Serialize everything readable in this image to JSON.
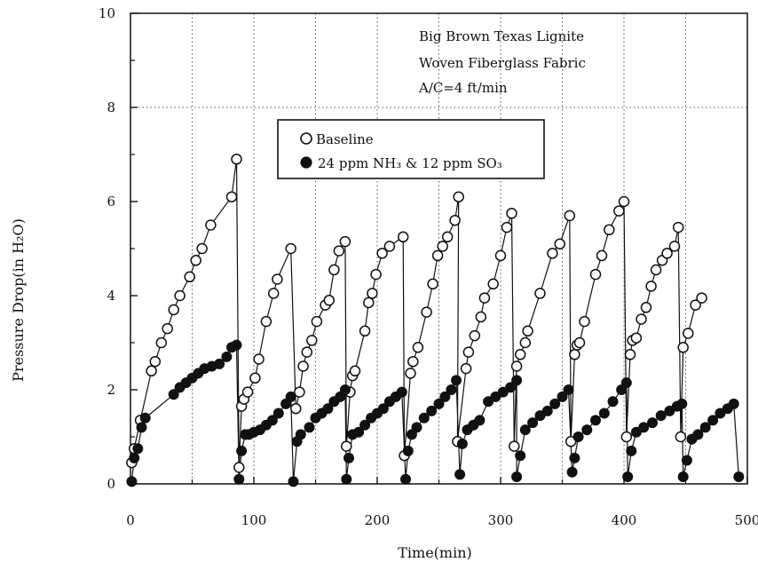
{
  "chart_data": {
    "type": "scatter",
    "xlabel": "Time(min)",
    "ylabel": "Pressure Drop(in H₂O)",
    "xlim": [
      0,
      500
    ],
    "ylim": [
      0,
      10
    ],
    "x_ticks": [
      "0",
      "100",
      "200",
      "300",
      "400",
      "500"
    ],
    "y_ticks": [
      "0",
      "2",
      "4",
      "6",
      "8",
      "10"
    ],
    "grid": "dotted vertical at every 50 min; dotted horizontal at 8",
    "annotations": [
      "Big Brown Texas Lignite",
      "Woven Fiberglass Fabric",
      "A/C=4 ft/min"
    ],
    "legend_position": "upper-left inside plot",
    "series": [
      {
        "name": "Baseline",
        "marker": "open-circle",
        "points": [
          [
            1,
            0.45
          ],
          [
            3,
            0.75
          ],
          [
            8,
            1.35
          ],
          [
            17,
            2.4
          ],
          [
            20,
            2.6
          ],
          [
            25,
            3.0
          ],
          [
            30,
            3.3
          ],
          [
            35,
            3.7
          ],
          [
            40,
            4.0
          ],
          [
            48,
            4.4
          ],
          [
            53,
            4.75
          ],
          [
            58,
            5.0
          ],
          [
            65,
            5.5
          ],
          [
            82,
            6.1
          ],
          [
            86,
            6.9
          ],
          [
            88,
            0.35
          ],
          [
            90,
            1.65
          ],
          [
            92,
            1.8
          ],
          [
            95,
            1.95
          ],
          [
            101,
            2.25
          ],
          [
            104,
            2.65
          ],
          [
            110,
            3.45
          ],
          [
            116,
            4.05
          ],
          [
            119,
            4.35
          ],
          [
            130,
            5.0
          ],
          [
            134,
            1.6
          ],
          [
            137,
            1.95
          ],
          [
            140,
            2.5
          ],
          [
            143,
            2.8
          ],
          [
            147,
            3.05
          ],
          [
            151,
            3.45
          ],
          [
            158,
            3.8
          ],
          [
            161,
            3.9
          ],
          [
            165,
            4.55
          ],
          [
            169,
            4.95
          ],
          [
            174,
            5.15
          ],
          [
            175,
            0.8
          ],
          [
            178,
            1.95
          ],
          [
            180,
            2.3
          ],
          [
            182,
            2.4
          ],
          [
            190,
            3.25
          ],
          [
            193,
            3.85
          ],
          [
            196,
            4.05
          ],
          [
            199,
            4.45
          ],
          [
            204,
            4.9
          ],
          [
            210,
            5.05
          ],
          [
            221,
            5.25
          ],
          [
            222,
            0.6
          ],
          [
            227,
            2.35
          ],
          [
            229,
            2.6
          ],
          [
            233,
            2.9
          ],
          [
            240,
            3.65
          ],
          [
            245,
            4.25
          ],
          [
            249,
            4.85
          ],
          [
            253,
            5.05
          ],
          [
            257,
            5.25
          ],
          [
            263,
            5.6
          ],
          [
            266,
            6.1
          ],
          [
            265,
            0.9
          ],
          [
            272,
            2.45
          ],
          [
            274,
            2.8
          ],
          [
            279,
            3.15
          ],
          [
            284,
            3.55
          ],
          [
            287,
            3.95
          ],
          [
            294,
            4.25
          ],
          [
            300,
            4.85
          ],
          [
            305,
            5.45
          ],
          [
            309,
            5.75
          ],
          [
            311,
            0.8
          ],
          [
            313,
            2.5
          ],
          [
            316,
            2.75
          ],
          [
            320,
            3.0
          ],
          [
            322,
            3.25
          ],
          [
            332,
            4.05
          ],
          [
            342,
            4.9
          ],
          [
            348,
            5.1
          ],
          [
            356,
            5.7
          ],
          [
            357,
            0.9
          ],
          [
            360,
            2.75
          ],
          [
            362,
            2.95
          ],
          [
            364,
            3.0
          ],
          [
            368,
            3.45
          ],
          [
            377,
            4.45
          ],
          [
            382,
            4.85
          ],
          [
            388,
            5.4
          ],
          [
            396,
            5.8
          ],
          [
            400,
            6.0
          ],
          [
            402,
            1.0
          ],
          [
            405,
            2.75
          ],
          [
            407,
            3.05
          ],
          [
            410,
            3.1
          ],
          [
            414,
            3.5
          ],
          [
            418,
            3.75
          ],
          [
            422,
            4.2
          ],
          [
            426,
            4.55
          ],
          [
            431,
            4.75
          ],
          [
            435,
            4.9
          ],
          [
            441,
            5.05
          ],
          [
            444,
            5.45
          ],
          [
            446,
            1.0
          ],
          [
            448,
            2.9
          ],
          [
            452,
            3.2
          ],
          [
            458,
            3.8
          ],
          [
            463,
            3.95
          ]
        ]
      },
      {
        "name": "24 ppm NH₃ & 12 ppm SO₃",
        "marker": "filled-circle",
        "points": [
          [
            1,
            0.05
          ],
          [
            3,
            0.55
          ],
          [
            6,
            0.75
          ],
          [
            9,
            1.2
          ],
          [
            12,
            1.4
          ],
          [
            35,
            1.9
          ],
          [
            40,
            2.05
          ],
          [
            45,
            2.15
          ],
          [
            50,
            2.25
          ],
          [
            55,
            2.35
          ],
          [
            60,
            2.45
          ],
          [
            66,
            2.5
          ],
          [
            72,
            2.55
          ],
          [
            78,
            2.7
          ],
          [
            82,
            2.9
          ],
          [
            86,
            2.95
          ],
          [
            88,
            0.1
          ],
          [
            90,
            0.7
          ],
          [
            93,
            1.05
          ],
          [
            96,
            1.05
          ],
          [
            100,
            1.1
          ],
          [
            105,
            1.15
          ],
          [
            110,
            1.25
          ],
          [
            115,
            1.35
          ],
          [
            120,
            1.5
          ],
          [
            126,
            1.7
          ],
          [
            130,
            1.85
          ],
          [
            132,
            0.05
          ],
          [
            135,
            0.9
          ],
          [
            138,
            1.05
          ],
          [
            145,
            1.2
          ],
          [
            150,
            1.4
          ],
          [
            155,
            1.5
          ],
          [
            160,
            1.6
          ],
          [
            165,
            1.75
          ],
          [
            170,
            1.85
          ],
          [
            174,
            2.0
          ],
          [
            175,
            0.1
          ],
          [
            177,
            0.55
          ],
          [
            180,
            1.05
          ],
          [
            185,
            1.1
          ],
          [
            190,
            1.25
          ],
          [
            195,
            1.4
          ],
          [
            200,
            1.5
          ],
          [
            205,
            1.6
          ],
          [
            210,
            1.75
          ],
          [
            215,
            1.85
          ],
          [
            220,
            1.95
          ],
          [
            223,
            0.1
          ],
          [
            225,
            0.7
          ],
          [
            228,
            1.05
          ],
          [
            232,
            1.2
          ],
          [
            238,
            1.4
          ],
          [
            244,
            1.55
          ],
          [
            250,
            1.7
          ],
          [
            255,
            1.85
          ],
          [
            260,
            2.0
          ],
          [
            264,
            2.2
          ],
          [
            267,
            0.2
          ],
          [
            269,
            0.85
          ],
          [
            273,
            1.15
          ],
          [
            278,
            1.25
          ],
          [
            283,
            1.35
          ],
          [
            290,
            1.75
          ],
          [
            296,
            1.85
          ],
          [
            302,
            1.95
          ],
          [
            308,
            2.05
          ],
          [
            313,
            2.2
          ],
          [
            313,
            0.15
          ],
          [
            316,
            0.6
          ],
          [
            320,
            1.15
          ],
          [
            326,
            1.3
          ],
          [
            332,
            1.45
          ],
          [
            338,
            1.55
          ],
          [
            344,
            1.7
          ],
          [
            350,
            1.85
          ],
          [
            355,
            2.0
          ],
          [
            358,
            0.25
          ],
          [
            360,
            0.55
          ],
          [
            363,
            1.0
          ],
          [
            370,
            1.15
          ],
          [
            377,
            1.35
          ],
          [
            384,
            1.5
          ],
          [
            391,
            1.75
          ],
          [
            398,
            2.0
          ],
          [
            402,
            2.15
          ],
          [
            403,
            0.15
          ],
          [
            406,
            0.7
          ],
          [
            410,
            1.1
          ],
          [
            416,
            1.2
          ],
          [
            423,
            1.3
          ],
          [
            430,
            1.45
          ],
          [
            437,
            1.55
          ],
          [
            443,
            1.65
          ],
          [
            447,
            1.7
          ],
          [
            448,
            0.15
          ],
          [
            451,
            0.5
          ],
          [
            455,
            0.95
          ],
          [
            460,
            1.05
          ],
          [
            466,
            1.2
          ],
          [
            472,
            1.35
          ],
          [
            478,
            1.5
          ],
          [
            484,
            1.6
          ],
          [
            489,
            1.7
          ],
          [
            493,
            0.15
          ]
        ]
      }
    ]
  }
}
